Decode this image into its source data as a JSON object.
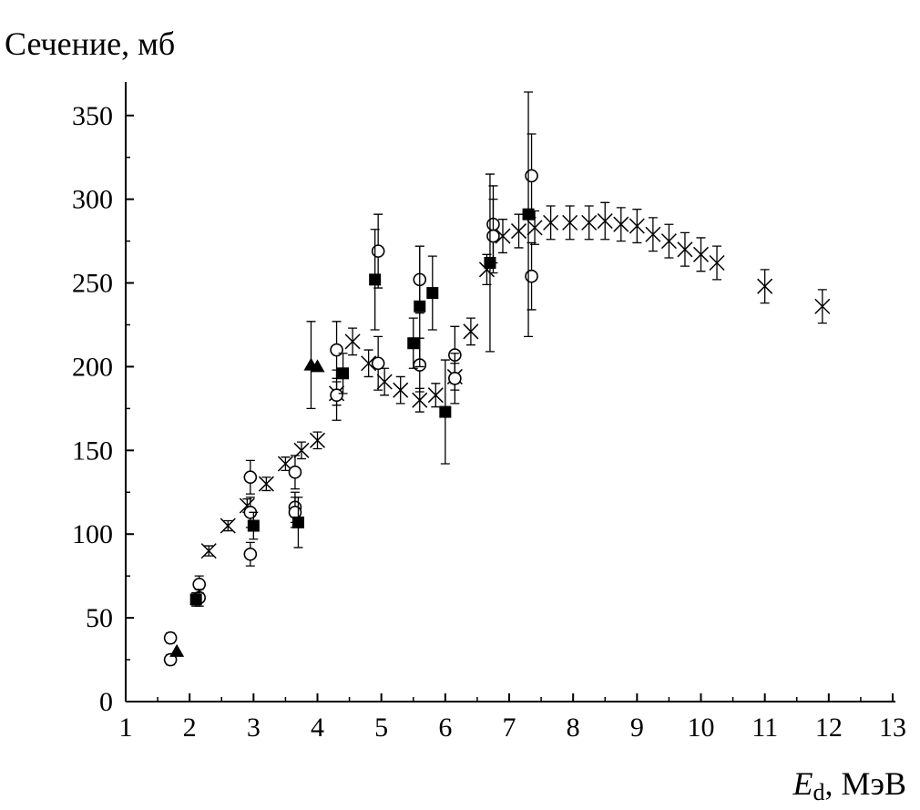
{
  "chart_data": {
    "type": "scatter",
    "title": "",
    "ylabel": "Сечение, мб",
    "xlabel_main": "E",
    "xlabel_sub": "d",
    "xlabel_rest": ", МэВ",
    "xlim": [
      1,
      13
    ],
    "ylim": [
      0,
      370
    ],
    "xticks": [
      1,
      2,
      3,
      4,
      5,
      6,
      7,
      8,
      9,
      10,
      11,
      12,
      13
    ],
    "yticks": [
      0,
      50,
      100,
      150,
      200,
      250,
      300,
      350
    ],
    "series": [
      {
        "name": "crosses",
        "marker": "x",
        "points": [
          {
            "x": 2.3,
            "y": 90,
            "err": 3
          },
          {
            "x": 2.6,
            "y": 105,
            "err": 3
          },
          {
            "x": 2.9,
            "y": 117,
            "err": 4
          },
          {
            "x": 3.2,
            "y": 130,
            "err": 4
          },
          {
            "x": 3.5,
            "y": 142,
            "err": 4
          },
          {
            "x": 3.75,
            "y": 150,
            "err": 5
          },
          {
            "x": 4.0,
            "y": 156,
            "err": 5
          },
          {
            "x": 4.3,
            "y": 184,
            "err": 7
          },
          {
            "x": 4.55,
            "y": 215,
            "err": 8
          },
          {
            "x": 4.8,
            "y": 202,
            "err": 8
          },
          {
            "x": 5.05,
            "y": 191,
            "err": 8
          },
          {
            "x": 5.3,
            "y": 186,
            "err": 8
          },
          {
            "x": 5.6,
            "y": 180,
            "err": 7
          },
          {
            "x": 5.85,
            "y": 183,
            "err": 7
          },
          {
            "x": 6.15,
            "y": 194,
            "err": 8
          },
          {
            "x": 6.4,
            "y": 221,
            "err": 8
          },
          {
            "x": 6.65,
            "y": 258,
            "err": 9
          },
          {
            "x": 6.9,
            "y": 278,
            "err": 10
          },
          {
            "x": 7.15,
            "y": 281,
            "err": 10
          },
          {
            "x": 7.4,
            "y": 283,
            "err": 10
          },
          {
            "x": 7.65,
            "y": 286,
            "err": 10
          },
          {
            "x": 7.95,
            "y": 286,
            "err": 10
          },
          {
            "x": 8.25,
            "y": 286,
            "err": 10
          },
          {
            "x": 8.5,
            "y": 287,
            "err": 11
          },
          {
            "x": 8.75,
            "y": 285,
            "err": 10
          },
          {
            "x": 9.0,
            "y": 284,
            "err": 10
          },
          {
            "x": 9.25,
            "y": 279,
            "err": 10
          },
          {
            "x": 9.5,
            "y": 275,
            "err": 10
          },
          {
            "x": 9.75,
            "y": 270,
            "err": 10
          },
          {
            "x": 10.0,
            "y": 267,
            "err": 10
          },
          {
            "x": 10.25,
            "y": 262,
            "err": 10
          },
          {
            "x": 11.0,
            "y": 248,
            "err": 10
          },
          {
            "x": 11.9,
            "y": 236,
            "err": 10
          }
        ]
      },
      {
        "name": "open circles",
        "marker": "circle",
        "points": [
          {
            "x": 1.7,
            "y": 38,
            "err": 3
          },
          {
            "x": 1.7,
            "y": 25,
            "err": 3
          },
          {
            "x": 2.15,
            "y": 70,
            "err": 5
          },
          {
            "x": 2.15,
            "y": 62,
            "err": 5
          },
          {
            "x": 2.95,
            "y": 134,
            "err": 10
          },
          {
            "x": 2.95,
            "y": 113,
            "err": 9
          },
          {
            "x": 2.95,
            "y": 88,
            "err": 7
          },
          {
            "x": 3.65,
            "y": 137,
            "err": 10
          },
          {
            "x": 3.65,
            "y": 116,
            "err": 9
          },
          {
            "x": 3.65,
            "y": 113,
            "err": 9
          },
          {
            "x": 4.3,
            "y": 210,
            "err": 17
          },
          {
            "x": 4.3,
            "y": 183,
            "err": 15
          },
          {
            "x": 4.95,
            "y": 269,
            "err": 22
          },
          {
            "x": 4.95,
            "y": 202,
            "err": 16
          },
          {
            "x": 5.6,
            "y": 252,
            "err": 20
          },
          {
            "x": 5.6,
            "y": 201,
            "err": 16
          },
          {
            "x": 6.15,
            "y": 207,
            "err": 17
          },
          {
            "x": 6.15,
            "y": 193,
            "err": 15
          },
          {
            "x": 6.75,
            "y": 285,
            "err": 23
          },
          {
            "x": 6.75,
            "y": 278,
            "err": 22
          },
          {
            "x": 7.35,
            "y": 314,
            "err": 25
          },
          {
            "x": 7.35,
            "y": 254,
            "err": 20
          }
        ]
      },
      {
        "name": "filled squares",
        "marker": "square",
        "points": [
          {
            "x": 2.1,
            "y": 61,
            "err": 4
          },
          {
            "x": 3.0,
            "y": 105,
            "err": 8
          },
          {
            "x": 3.7,
            "y": 107,
            "err": 15
          },
          {
            "x": 4.4,
            "y": 196,
            "err": 12
          },
          {
            "x": 4.9,
            "y": 252,
            "err": 30
          },
          {
            "x": 5.5,
            "y": 214,
            "err": 15
          },
          {
            "x": 5.6,
            "y": 236,
            "err": 36
          },
          {
            "x": 5.8,
            "y": 244,
            "err": 22
          },
          {
            "x": 6.0,
            "y": 173,
            "err": 31
          },
          {
            "x": 6.7,
            "y": 262,
            "err": 53
          },
          {
            "x": 7.3,
            "y": 291,
            "err": 73
          }
        ]
      },
      {
        "name": "filled triangles",
        "marker": "triangle",
        "points": [
          {
            "x": 1.8,
            "y": 30,
            "err": 0
          },
          {
            "x": 3.9,
            "y": 201,
            "err": 26
          },
          {
            "x": 4.0,
            "y": 200,
            "err": 0
          }
        ]
      }
    ]
  }
}
